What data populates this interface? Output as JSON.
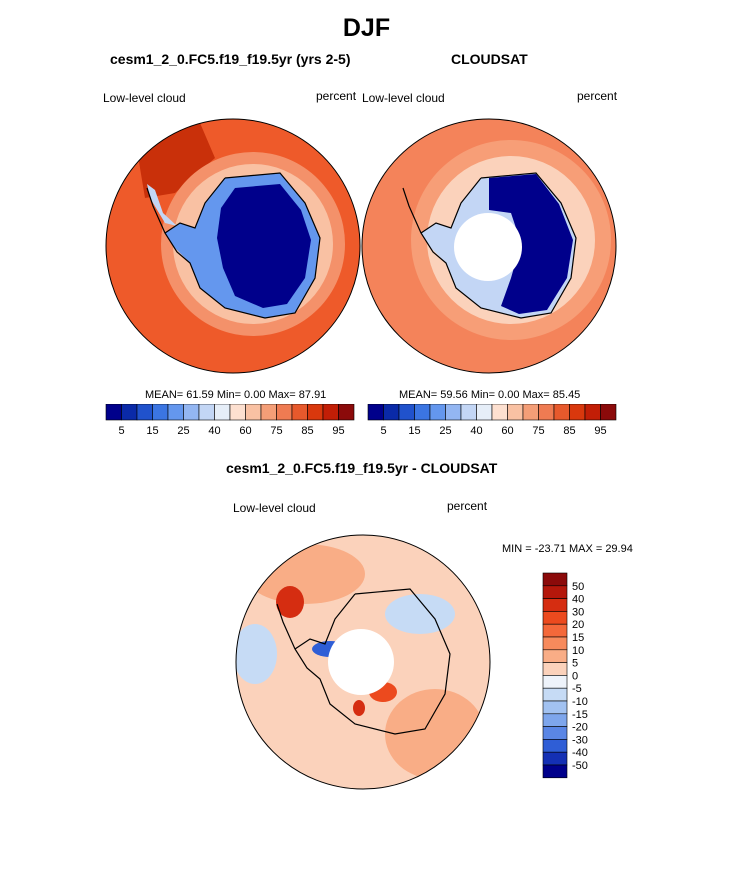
{
  "page": {
    "title": "DJF",
    "season": "DJF"
  },
  "colors": {
    "land_line": "#000000",
    "ocean_high": "#ee5a2a",
    "ice_low": "#000c8c",
    "missing": "#ffffff"
  },
  "panels": {
    "model": {
      "case_title": "cesm1_2_0.FC5.f19_f19.5yr (yrs 2-5)",
      "variable": "Low-level cloud",
      "units": "percent",
      "stats": "MEAN=  61.59  Min=   0.00  Max=  87.91",
      "colorbar": {
        "ticks": [
          "5",
          "15",
          "25",
          "40",
          "60",
          "75",
          "85",
          "95"
        ],
        "colors": [
          "#00008b",
          "#0a2aa8",
          "#2052cc",
          "#3b75e2",
          "#6497ee",
          "#93b6f2",
          "#c3d6f5",
          "#e6eef8",
          "#fde0d0",
          "#f9c1a3",
          "#f49e77",
          "#ef7b52",
          "#e7592c",
          "#d9380d",
          "#c21e06",
          "#8b0a0a"
        ]
      }
    },
    "obs": {
      "case_title": "CLOUDSAT",
      "variable": "Low-level cloud",
      "units": "percent",
      "stats": "MEAN=  59.56  Min=   0.00  Max=  85.45",
      "colorbar": {
        "ticks": [
          "5",
          "15",
          "25",
          "40",
          "60",
          "75",
          "85",
          "95"
        ],
        "colors": [
          "#00008b",
          "#0a2aa8",
          "#2052cc",
          "#3b75e2",
          "#6497ee",
          "#93b6f2",
          "#c3d6f5",
          "#e6eef8",
          "#fde0d0",
          "#f9c1a3",
          "#f49e77",
          "#ef7b52",
          "#e7592c",
          "#d9380d",
          "#c21e06",
          "#8b0a0a"
        ]
      }
    },
    "diff": {
      "case_title": "cesm1_2_0.FC5.f19_f19.5yr - CLOUDSAT",
      "variable": "Low-level cloud",
      "units": "percent",
      "stats": "MIN = -23.71 MAX =  29.94",
      "colorbar": {
        "ticks": [
          "50",
          "40",
          "30",
          "20",
          "15",
          "10",
          "5",
          "0",
          "-5",
          "-10",
          "-15",
          "-20",
          "-30",
          "-40",
          "-50"
        ],
        "colors": [
          "#8b0a0a",
          "#b4170b",
          "#d52d11",
          "#ec4a1e",
          "#f4683a",
          "#f78a5c",
          "#f9ad86",
          "#fbd2bb",
          "#eef3fa",
          "#c6dbf5",
          "#a2c2f1",
          "#7ea6ec",
          "#5a86e5",
          "#2f5ed6",
          "#1430b4",
          "#00008b"
        ]
      }
    }
  },
  "chart_data": [
    {
      "type": "heatmap",
      "projection": "south polar stereographic",
      "title": "cesm1_2_0.FC5.f19_f19.5yr (yrs 2-5)",
      "variable": "Low-level cloud",
      "units": "percent",
      "season": "DJF",
      "mean": 61.59,
      "min": 0.0,
      "max": 87.91,
      "levels": [
        5,
        10,
        15,
        20,
        25,
        30,
        40,
        50,
        60,
        70,
        75,
        80,
        85,
        90,
        95
      ],
      "colorbar_labels": [
        5,
        15,
        25,
        40,
        60,
        75,
        85,
        95
      ]
    },
    {
      "type": "heatmap",
      "projection": "south polar stereographic",
      "title": "CLOUDSAT",
      "variable": "Low-level cloud",
      "units": "percent",
      "season": "DJF",
      "mean": 59.56,
      "min": 0.0,
      "max": 85.45,
      "levels": [
        5,
        10,
        15,
        20,
        25,
        30,
        40,
        50,
        60,
        70,
        75,
        80,
        85,
        90,
        95
      ],
      "colorbar_labels": [
        5,
        15,
        25,
        40,
        60,
        75,
        85,
        95
      ]
    },
    {
      "type": "heatmap",
      "projection": "south polar stereographic",
      "title": "cesm1_2_0.FC5.f19_f19.5yr - CLOUDSAT",
      "variable": "Low-level cloud",
      "units": "percent",
      "season": "DJF",
      "min": -23.71,
      "max": 29.94,
      "levels": [
        -50,
        -40,
        -30,
        -20,
        -15,
        -10,
        -5,
        0,
        5,
        10,
        15,
        20,
        30,
        40,
        50
      ],
      "colorbar_labels": [
        50,
        40,
        30,
        20,
        15,
        10,
        5,
        0,
        -5,
        -10,
        -15,
        -20,
        -30,
        -40,
        -50
      ]
    }
  ]
}
